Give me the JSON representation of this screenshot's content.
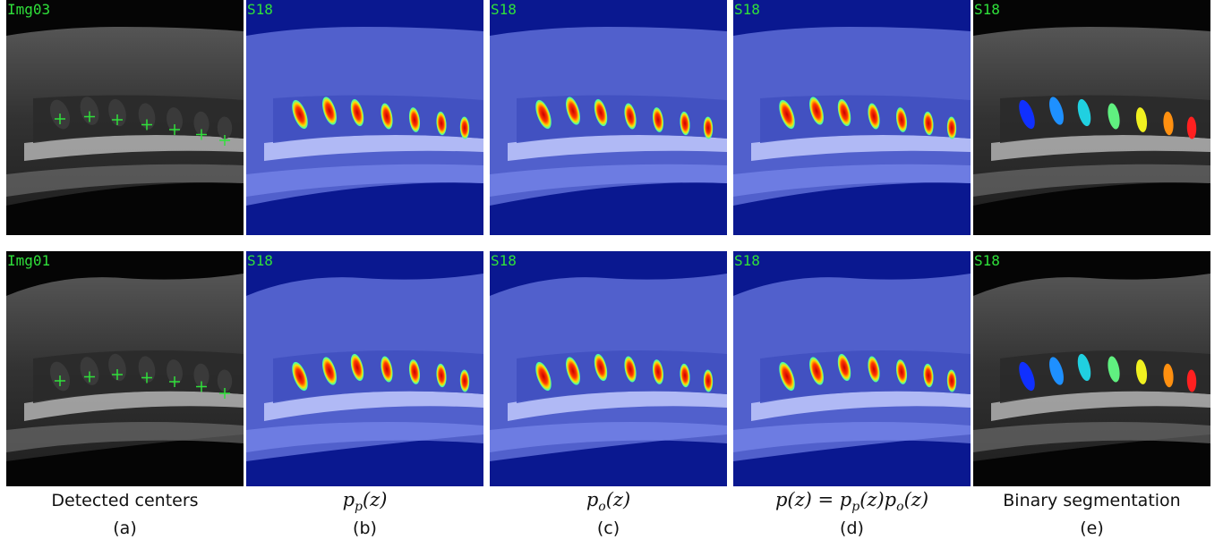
{
  "rows": [
    {
      "labels": [
        "Img03",
        "S18",
        "S18",
        "S18",
        "S18"
      ]
    },
    {
      "labels": [
        "Img01",
        "S18",
        "S18",
        "S18",
        "S18"
      ]
    }
  ],
  "captions": [
    {
      "parts": [
        {
          "text": "Detected centers"
        }
      ],
      "letter": "(a)"
    },
    {
      "parts": [
        {
          "text": "p"
        },
        {
          "sub": "p"
        },
        {
          "text": "(z)"
        }
      ],
      "letter": "(b)"
    },
    {
      "parts": [
        {
          "text": "p"
        },
        {
          "sub": "o"
        },
        {
          "text": "(z)"
        }
      ],
      "letter": "(c)"
    },
    {
      "parts": [
        {
          "text": "p(z) = p"
        },
        {
          "sub": "p"
        },
        {
          "text": "(z)p"
        },
        {
          "sub": "o"
        },
        {
          "text": "(z)"
        }
      ],
      "letter": "(d)"
    },
    {
      "parts": [
        {
          "text": "Binary segmentation"
        }
      ],
      "letter": "(e)"
    }
  ]
}
